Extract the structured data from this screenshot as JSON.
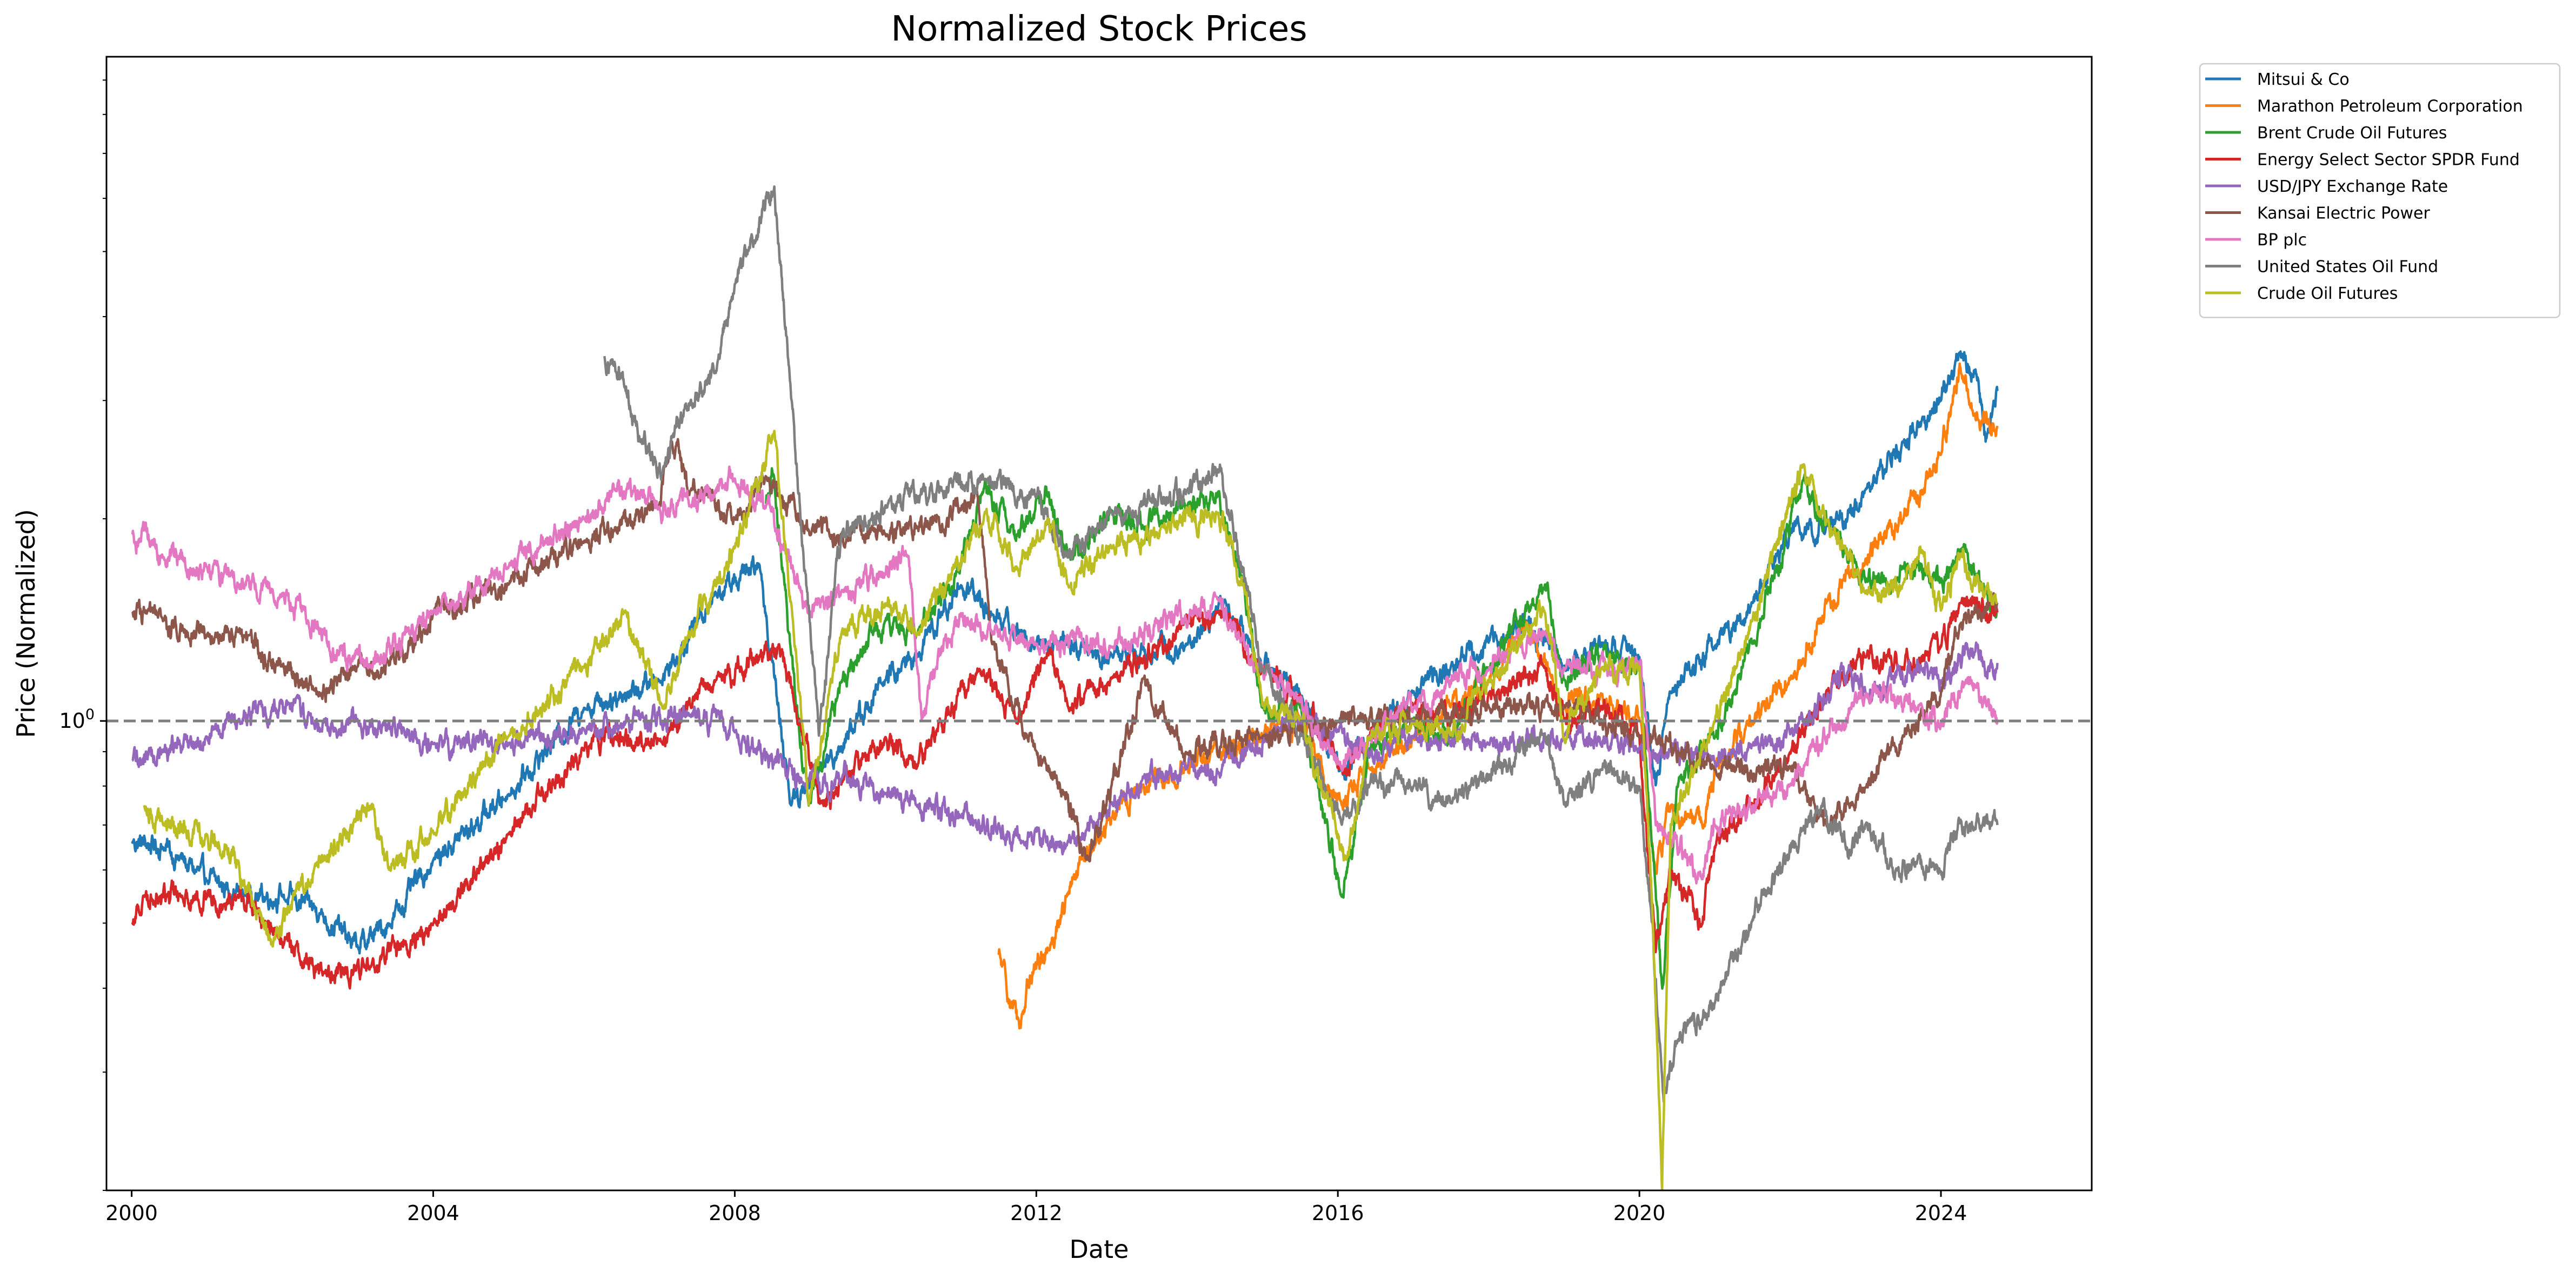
{
  "chart_data": {
    "type": "line",
    "title": "Normalized Stock Prices",
    "xlabel": "Date",
    "ylabel": "Price (Normalized)",
    "x_scale": "time",
    "y_scale": "log",
    "xlim": [
      "1999-09-01",
      "2026-01-01"
    ],
    "ylim": [
      0.2,
      9.75
    ],
    "x_ticks": [
      {
        "value": 2000,
        "label": "2000"
      },
      {
        "value": 2004,
        "label": "2004"
      },
      {
        "value": 2008,
        "label": "2008"
      },
      {
        "value": 2012,
        "label": "2012"
      },
      {
        "value": 2016,
        "label": "2016"
      },
      {
        "value": 2020,
        "label": "2020"
      },
      {
        "value": 2024,
        "label": "2024"
      }
    ],
    "y_ticks": [
      {
        "value": 1,
        "label": "10",
        "superscript": "0"
      }
    ],
    "reference_line": {
      "y": 1,
      "style": "dashed",
      "color": "#7f7f7f"
    },
    "grid": false,
    "legend_position": "outside-top-right",
    "series": [
      {
        "name": "Mitsui & Co",
        "color": "#1f77b4",
        "x": [
          "2000-01-03",
          "2000-06-01",
          "2001-01-01",
          "2001-07-01",
          "2002-01-01",
          "2002-07-01",
          "2003-01-01",
          "2003-06-01",
          "2004-01-01",
          "2005-01-01",
          "2006-01-01",
          "2007-01-01",
          "2007-10-01",
          "2008-05-01",
          "2008-10-01",
          "2009-03-01",
          "2010-01-01",
          "2010-06-01",
          "2011-01-01",
          "2011-06-01",
          "2012-01-01",
          "2012-06-01",
          "2013-01-01",
          "2014-01-01",
          "2014-07-01",
          "2015-01-01",
          "2015-07-01",
          "2016-01-20",
          "2016-06-01",
          "2017-01-01",
          "2017-07-01",
          "2018-01-01",
          "2018-07-01",
          "2019-01-01",
          "2019-07-01",
          "2020-01-01",
          "2020-03-20",
          "2020-06-01",
          "2021-01-01",
          "2021-07-01",
          "2022-01-01",
          "2022-07-01",
          "2023-01-01",
          "2023-07-01",
          "2024-01-01",
          "2024-04-01",
          "2024-07-01",
          "2024-08-05",
          "2024-10-01"
        ],
        "values": [
          0.66,
          0.65,
          0.58,
          0.55,
          0.55,
          0.52,
          0.46,
          0.5,
          0.62,
          0.78,
          1.05,
          1.15,
          1.55,
          1.7,
          0.75,
          0.85,
          1.15,
          1.25,
          1.6,
          1.45,
          1.3,
          1.3,
          1.25,
          1.3,
          1.5,
          1.2,
          1.1,
          0.85,
          0.95,
          1.1,
          1.2,
          1.3,
          1.4,
          1.2,
          1.3,
          1.25,
          0.8,
          1.1,
          1.3,
          1.5,
          1.9,
          1.95,
          2.2,
          2.6,
          3.0,
          3.5,
          3.2,
          2.6,
          3.1
        ]
      },
      {
        "name": "Marathon Petroleum Corporation",
        "color": "#ff7f0e",
        "x": [
          "2011-07-01",
          "2011-09-01",
          "2011-10-15",
          "2011-12-01",
          "2012-03-01",
          "2012-06-01",
          "2012-10-01",
          "2013-01-01",
          "2013-06-01",
          "2014-01-01",
          "2014-06-01",
          "2015-01-01",
          "2015-07-01",
          "2016-01-20",
          "2016-06-01",
          "2017-01-01",
          "2017-07-01",
          "2018-01-01",
          "2018-07-01",
          "2019-01-01",
          "2019-07-01",
          "2020-01-01",
          "2020-03-20",
          "2020-06-01",
          "2020-11-01",
          "2021-01-01",
          "2021-07-01",
          "2022-01-01",
          "2022-07-01",
          "2023-01-01",
          "2023-07-01",
          "2024-01-01",
          "2024-04-01",
          "2024-07-01",
          "2024-10-01"
        ],
        "values": [
          0.45,
          0.38,
          0.35,
          0.42,
          0.46,
          0.55,
          0.65,
          0.72,
          0.8,
          0.85,
          0.9,
          0.95,
          1.0,
          0.75,
          0.85,
          0.95,
          1.05,
          1.15,
          1.4,
          1.05,
          1.1,
          1.0,
          0.6,
          0.75,
          0.7,
          0.85,
          1.0,
          1.15,
          1.5,
          1.75,
          2.0,
          2.5,
          3.4,
          2.8,
          2.75
        ]
      },
      {
        "name": "Brent Crude Oil Futures",
        "color": "#2ca02c",
        "x": [
          "2008-06-01",
          "2008-07-01",
          "2008-10-01",
          "2008-12-25",
          "2009-06-01",
          "2010-01-01",
          "2010-06-01",
          "2011-01-01",
          "2011-04-15",
          "2011-10-01",
          "2012-03-01",
          "2012-06-01",
          "2013-01-01",
          "2013-06-01",
          "2014-01-01",
          "2014-06-01",
          "2014-10-01",
          "2015-01-01",
          "2015-07-01",
          "2016-01-20",
          "2016-06-01",
          "2017-01-01",
          "2017-07-01",
          "2018-01-01",
          "2018-10-01",
          "2019-01-01",
          "2019-07-01",
          "2020-01-01",
          "2020-04-21",
          "2020-07-01",
          "2021-01-01",
          "2021-07-01",
          "2022-03-08",
          "2022-07-01",
          "2023-01-01",
          "2023-07-01",
          "2024-01-01",
          "2024-04-01",
          "2024-10-01"
        ],
        "values": [
          2.1,
          2.35,
          1.25,
          0.75,
          1.15,
          1.4,
          1.35,
          1.7,
          2.2,
          1.9,
          2.2,
          1.75,
          2.05,
          1.95,
          2.1,
          2.2,
          1.6,
          1.05,
          1.05,
          0.55,
          0.9,
          1.0,
          0.95,
          1.2,
          1.6,
          1.15,
          1.25,
          1.2,
          0.4,
          0.8,
          0.95,
          1.3,
          2.3,
          1.95,
          1.6,
          1.7,
          1.6,
          1.8,
          1.45
        ]
      },
      {
        "name": "Energy Select Sector SPDR Fund",
        "color": "#d62728",
        "x": [
          "2000-01-03",
          "2000-03-01",
          "2000-09-01",
          "2001-06-01",
          "2001-10-01",
          "2002-07-25",
          "2003-03-01",
          "2004-01-01",
          "2005-01-01",
          "2006-01-01",
          "2006-06-01",
          "2007-01-01",
          "2007-10-01",
          "2008-05-01",
          "2008-08-01",
          "2009-03-01",
          "2009-06-01",
          "2010-01-01",
          "2010-06-01",
          "2011-04-01",
          "2011-10-01",
          "2012-03-01",
          "2012-06-01",
          "2013-01-01",
          "2014-06-01",
          "2015-01-01",
          "2015-07-01",
          "2016-01-20",
          "2016-06-01",
          "2017-01-01",
          "2017-07-01",
          "2018-01-01",
          "2018-10-01",
          "2019-01-01",
          "2019-07-01",
          "2020-01-01",
          "2020-03-20",
          "2020-06-01",
          "2020-10-30",
          "2021-01-01",
          "2021-07-01",
          "2022-01-01",
          "2022-07-01",
          "2023-01-01",
          "2023-07-01",
          "2024-01-01",
          "2024-04-01",
          "2024-10-01"
        ],
        "values": [
          0.5,
          0.55,
          0.55,
          0.55,
          0.5,
          0.42,
          0.43,
          0.5,
          0.68,
          0.9,
          0.95,
          0.93,
          1.15,
          1.25,
          1.3,
          0.75,
          0.8,
          0.95,
          0.85,
          1.2,
          1.0,
          1.25,
          1.05,
          1.15,
          1.45,
          1.2,
          1.1,
          0.85,
          0.95,
          1.05,
          1.0,
          1.1,
          1.2,
          1.0,
          1.05,
          0.95,
          0.45,
          0.6,
          0.5,
          0.65,
          0.75,
          0.9,
          1.1,
          1.25,
          1.2,
          1.3,
          1.5,
          1.45
        ]
      },
      {
        "name": "USD/JPY Exchange Rate",
        "color": "#9467bd",
        "x": [
          "2000-01-03",
          "2000-06-01",
          "2001-01-01",
          "2001-06-01",
          "2002-02-01",
          "2002-06-01",
          "2003-01-01",
          "2004-01-01",
          "2005-01-01",
          "2006-01-01",
          "2007-06-01",
          "2008-01-01",
          "2008-12-01",
          "2009-06-01",
          "2010-01-01",
          "2010-06-01",
          "2011-01-01",
          "2011-10-31",
          "2012-06-01",
          "2013-01-01",
          "2013-06-01",
          "2014-01-01",
          "2014-06-01",
          "2015-06-01",
          "2016-01-01",
          "2016-06-01",
          "2017-01-01",
          "2018-01-01",
          "2019-01-01",
          "2020-01-01",
          "2020-06-01",
          "2021-01-01",
          "2021-07-01",
          "2022-01-01",
          "2022-10-21",
          "2023-01-01",
          "2023-10-01",
          "2024-01-01",
          "2024-06-28",
          "2024-08-05",
          "2024-10-01"
        ],
        "values": [
          0.87,
          0.9,
          0.95,
          1.0,
          1.06,
          0.99,
          1.0,
          0.92,
          0.92,
          0.97,
          1.02,
          0.96,
          0.8,
          0.82,
          0.78,
          0.75,
          0.72,
          0.66,
          0.66,
          0.75,
          0.83,
          0.85,
          0.84,
          1.0,
          0.97,
          0.88,
          0.95,
          0.92,
          0.95,
          0.91,
          0.9,
          0.87,
          0.92,
          0.95,
          1.2,
          1.1,
          1.2,
          1.15,
          1.3,
          1.18,
          1.22
        ]
      },
      {
        "name": "Kansai Electric Power",
        "color": "#8c564b",
        "x": [
          "2000-01-03",
          "2000-06-01",
          "2001-01-01",
          "2001-06-01",
          "2002-01-01",
          "2002-07-01",
          "2003-01-01",
          "2003-06-01",
          "2004-01-01",
          "2005-01-01",
          "2006-01-01",
          "2007-01-01",
          "2007-03-01",
          "2007-06-01",
          "2008-01-01",
          "2008-06-01",
          "2009-01-01",
          "2010-01-01",
          "2010-06-01",
          "2011-01-01",
          "2011-03-20",
          "2011-06-01",
          "2012-01-01",
          "2012-06-01",
          "2012-09-01",
          "2013-01-01",
          "2013-06-01",
          "2014-01-01",
          "2015-01-01",
          "2016-01-01",
          "2017-01-01",
          "2018-01-01",
          "2019-01-01",
          "2020-01-01",
          "2021-01-01",
          "2022-01-01",
          "2022-07-01",
          "2023-01-01",
          "2023-07-01",
          "2024-01-01",
          "2024-04-01",
          "2024-10-01"
        ],
        "values": [
          1.45,
          1.4,
          1.35,
          1.35,
          1.2,
          1.1,
          1.2,
          1.2,
          1.45,
          1.6,
          1.85,
          2.1,
          2.6,
          2.2,
          2.0,
          2.3,
          1.9,
          1.9,
          1.95,
          2.05,
          2.2,
          1.3,
          0.9,
          0.78,
          0.62,
          0.8,
          1.15,
          0.9,
          0.95,
          1.0,
          1.0,
          1.05,
          1.05,
          0.95,
          0.85,
          0.85,
          0.7,
          0.8,
          0.95,
          1.1,
          1.4,
          1.5
        ]
      },
      {
        "name": "BP plc",
        "color": "#e377c2",
        "x": [
          "2000-01-03",
          "2000-06-01",
          "2001-01-01",
          "2001-06-01",
          "2002-01-01",
          "2002-07-01",
          "2002-10-01",
          "2003-03-01",
          "2004-01-01",
          "2005-01-01",
          "2006-01-01",
          "2006-06-01",
          "2007-01-01",
          "2007-06-01",
          "2008-01-01",
          "2008-06-01",
          "2009-01-01",
          "2009-06-01",
          "2010-04-20",
          "2010-06-25",
          "2010-09-01",
          "2011-01-01",
          "2011-06-01",
          "2012-01-01",
          "2013-01-01",
          "2014-06-01",
          "2014-12-01",
          "2015-06-01",
          "2016-01-20",
          "2016-06-01",
          "2017-01-01",
          "2018-01-01",
          "2018-10-01",
          "2019-01-01",
          "2020-01-01",
          "2020-03-20",
          "2020-10-30",
          "2021-01-01",
          "2022-01-01",
          "2022-07-01",
          "2023-01-01",
          "2023-10-01",
          "2024-01-01",
          "2024-05-01",
          "2024-09-01",
          "2024-10-01"
        ],
        "values": [
          1.9,
          1.75,
          1.7,
          1.6,
          1.55,
          1.35,
          1.25,
          1.2,
          1.45,
          1.7,
          2.0,
          2.2,
          2.1,
          2.1,
          2.3,
          2.1,
          1.45,
          1.55,
          1.75,
          1.0,
          1.2,
          1.45,
          1.35,
          1.3,
          1.3,
          1.5,
          1.2,
          1.1,
          0.85,
          0.95,
          1.05,
          1.2,
          1.35,
          1.2,
          1.2,
          0.7,
          0.58,
          0.7,
          0.8,
          0.95,
          1.1,
          1.05,
          1.0,
          1.15,
          1.05,
          1.0
        ]
      },
      {
        "name": "United States Oil Fund",
        "color": "#7f7f7f",
        "x": [
          "2006-04-10",
          "2006-07-01",
          "2006-10-01",
          "2007-01-20",
          "2007-06-01",
          "2007-10-01",
          "2008-01-01",
          "2008-07-11",
          "2008-10-01",
          "2009-02-12",
          "2009-06-01",
          "2010-01-01",
          "2011-04-29",
          "2012-01-01",
          "2012-06-01",
          "2013-01-01",
          "2014-01-01",
          "2014-06-01",
          "2014-10-01",
          "2015-01-01",
          "2015-06-01",
          "2016-01-20",
          "2016-06-01",
          "2017-01-01",
          "2017-07-01",
          "2018-10-01",
          "2019-01-01",
          "2019-07-01",
          "2020-01-01",
          "2020-03-01",
          "2020-04-28",
          "2020-07-01",
          "2021-01-01",
          "2021-07-01",
          "2022-03-08",
          "2022-06-01",
          "2022-10-01",
          "2023-01-01",
          "2023-06-01",
          "2024-01-01",
          "2024-04-01",
          "2024-10-01"
        ],
        "values": [
          3.5,
          3.3,
          2.6,
          2.4,
          3.0,
          3.3,
          4.5,
          6.3,
          3.0,
          0.95,
          1.9,
          2.1,
          2.3,
          2.15,
          1.75,
          2.05,
          2.2,
          2.35,
          1.7,
          1.2,
          1.0,
          0.7,
          0.8,
          0.8,
          0.75,
          0.95,
          0.75,
          0.85,
          0.8,
          0.5,
          0.27,
          0.33,
          0.38,
          0.5,
          0.7,
          0.75,
          0.65,
          0.7,
          0.6,
          0.6,
          0.7,
          0.7
        ]
      },
      {
        "name": "Crude Oil Futures",
        "color": "#bcbd22",
        "x": [
          "2000-03-01",
          "2000-06-01",
          "2001-01-01",
          "2001-06-01",
          "2001-11-15",
          "2002-03-01",
          "2002-06-01",
          "2003-03-01",
          "2003-06-01",
          "2004-01-01",
          "2005-01-01",
          "2006-01-01",
          "2006-07-14",
          "2007-01-20",
          "2007-06-01",
          "2008-01-01",
          "2008-07-11",
          "2008-10-01",
          "2008-12-25",
          "2009-06-01",
          "2010-01-01",
          "2010-06-01",
          "2011-04-29",
          "2011-10-01",
          "2012-03-01",
          "2012-06-01",
          "2013-01-01",
          "2013-09-01",
          "2014-06-01",
          "2014-10-01",
          "2015-01-01",
          "2015-07-01",
          "2016-02-11",
          "2016-06-01",
          "2017-01-01",
          "2017-07-01",
          "2018-01-01",
          "2018-10-01",
          "2019-01-01",
          "2019-07-01",
          "2020-01-01",
          "2020-03-01",
          "2020-04-20",
          "2020-06-01",
          "2021-01-01",
          "2021-07-01",
          "2022-03-08",
          "2022-07-01",
          "2023-01-01",
          "2023-07-01",
          "2023-10-01",
          "2024-01-01",
          "2024-04-01",
          "2024-10-01"
        ],
        "values": [
          0.75,
          0.7,
          0.68,
          0.62,
          0.46,
          0.55,
          0.6,
          0.75,
          0.6,
          0.68,
          0.95,
          1.2,
          1.45,
          1.05,
          1.35,
          1.8,
          2.7,
          1.5,
          0.75,
          1.35,
          1.5,
          1.35,
          2.05,
          1.7,
          2.0,
          1.6,
          1.8,
          1.95,
          2.05,
          1.6,
          1.05,
          1.0,
          0.62,
          0.95,
          1.0,
          0.95,
          1.15,
          1.45,
          0.95,
          1.2,
          1.2,
          0.55,
          0.2,
          0.7,
          1.0,
          1.4,
          2.4,
          2.0,
          1.55,
          1.6,
          1.8,
          1.45,
          1.75,
          1.5
        ]
      }
    ]
  }
}
